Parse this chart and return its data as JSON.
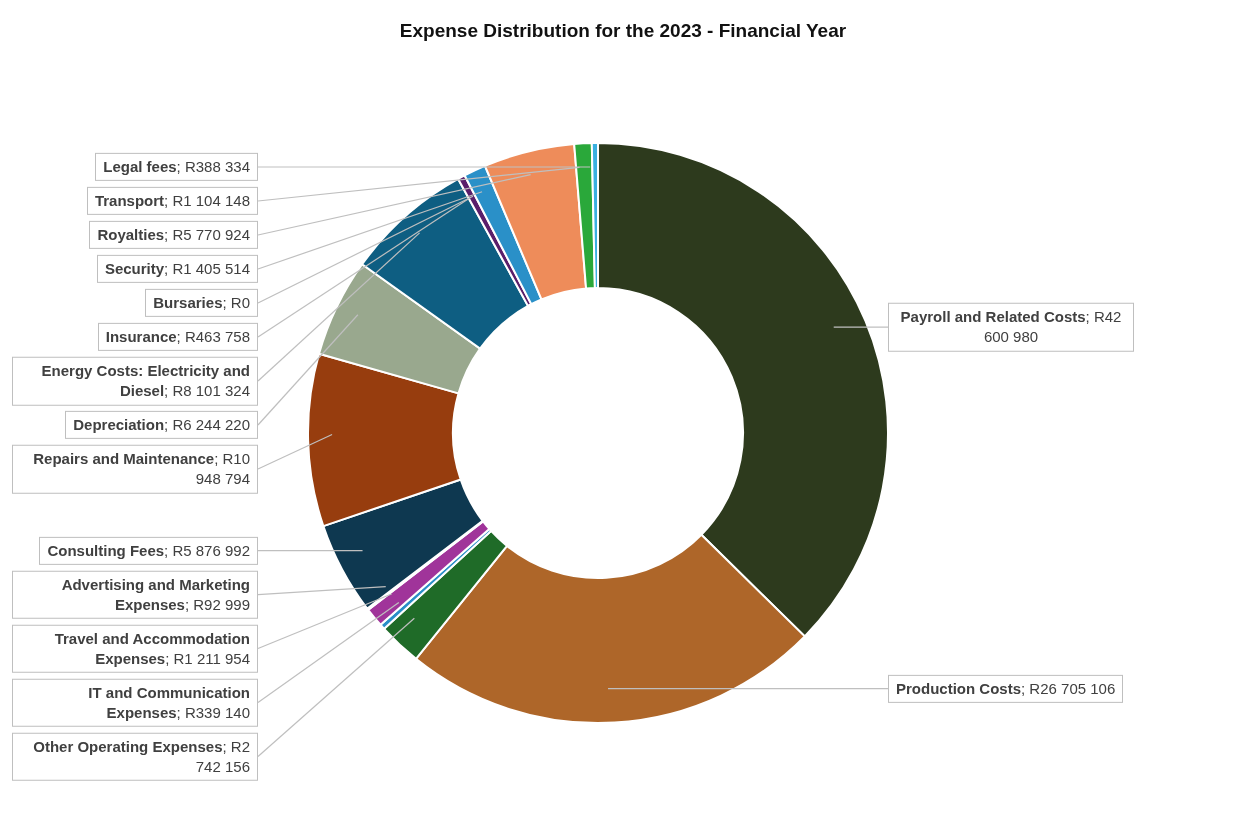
{
  "chart_data": {
    "type": "donut",
    "title": "Expense Distribution for the 2023 - Financial Year",
    "categories": [
      "Payroll and Related Costs",
      "Production Costs",
      "Other Operating Expenses",
      "IT and Communication Expenses",
      "Travel and Accommodation Expenses",
      "Advertising and Marketing Expenses",
      "Consulting Fees",
      "Repairs and Maintenance",
      "Depreciation",
      "Energy Costs: Electricity and Diesel",
      "Insurance",
      "Bursaries",
      "Security",
      "Royalties",
      "Transport",
      "Legal fees"
    ],
    "values": [
      42600980,
      26705106,
      2742156,
      339140,
      1211954,
      92999,
      5876992,
      10948794,
      6244220,
      8101324,
      463758,
      0,
      1405514,
      5770924,
      1104148,
      388334
    ],
    "value_labels": [
      "; R42 600 980",
      "; R26 705 106",
      "; R2 742 156",
      "; R339 140",
      "; R1 211 954",
      "; R92 999",
      "; R5 876 992",
      "; R10 948 794",
      "; R6 244 220",
      "; R8 101 324",
      "; R463 758",
      "; R0",
      "; R1 405 514",
      "; R5 770 924",
      "; R1 104 148",
      "; R388 334"
    ],
    "colors": [
      "#2d3a1d",
      "#ae6629",
      "#1f6b28",
      "#2a8fc8",
      "#a0349a",
      "#2a5f8a",
      "#0e3850",
      "#973d0e",
      "#99a88e",
      "#0e5e82",
      "#5a1e6a",
      "#888888",
      "#2a90c8",
      "#ee8c5a",
      "#2aa83a",
      "#3ab0e0"
    ]
  }
}
